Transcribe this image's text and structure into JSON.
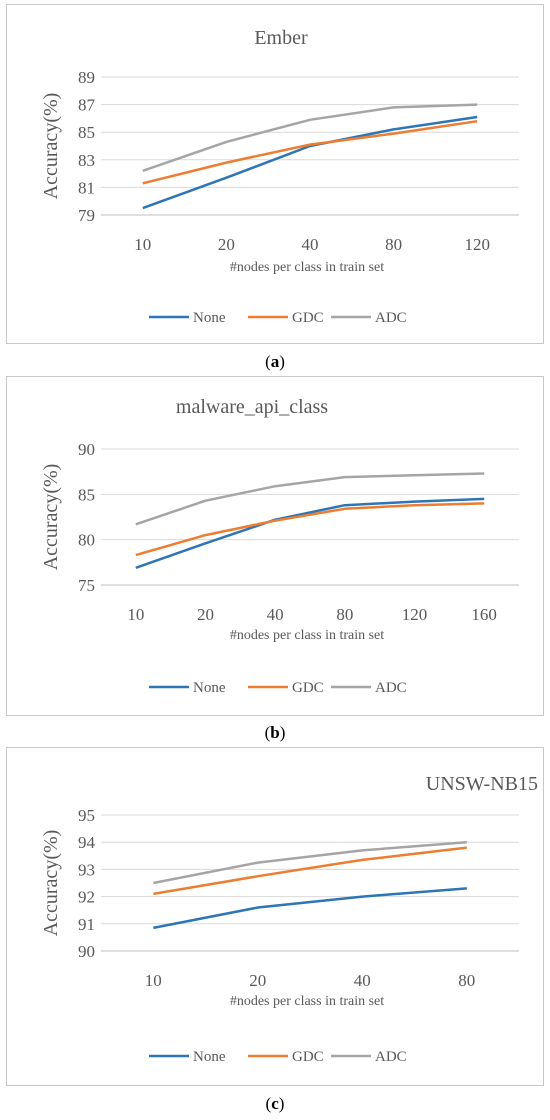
{
  "panels": [
    {
      "caption_open": "(",
      "caption_letter": "a",
      "caption_close": ")"
    },
    {
      "caption_open": "(",
      "caption_letter": "b",
      "caption_close": ")"
    },
    {
      "caption_open": "(",
      "caption_letter": "c",
      "caption_close": ")"
    }
  ],
  "colors": {
    "None": "#2e75b6",
    "GDC": "#ed7d31",
    "ADC": "#a5a5a5"
  },
  "chart_data": [
    {
      "type": "line",
      "title": "Ember",
      "xlabel": "#nodes  per class in train set",
      "ylabel": "Accuracy(%)",
      "categories": [
        "10",
        "20",
        "40",
        "80",
        "120"
      ],
      "ylim": [
        79,
        89
      ],
      "yticks": [
        79,
        81,
        83,
        85,
        87,
        89
      ],
      "grid": true,
      "legend": "bottom",
      "series": [
        {
          "name": "None",
          "values": [
            79.5,
            81.7,
            84.0,
            85.2,
            86.1
          ]
        },
        {
          "name": "GDC",
          "values": [
            81.3,
            82.8,
            84.1,
            84.9,
            85.8
          ]
        },
        {
          "name": "ADC",
          "values": [
            82.2,
            84.3,
            85.9,
            86.8,
            87.0
          ]
        }
      ]
    },
    {
      "type": "line",
      "title": "malware_api_class",
      "xlabel": "#nodes  per class in train set",
      "ylabel": "Accuracy(%)",
      "categories": [
        "10",
        "20",
        "40",
        "80",
        "120",
        "160"
      ],
      "ylim": [
        75,
        90
      ],
      "yticks": [
        75,
        80,
        85,
        90
      ],
      "grid": true,
      "legend": "bottom",
      "series": [
        {
          "name": "None",
          "values": [
            76.9,
            79.6,
            82.2,
            83.8,
            84.2,
            84.5
          ]
        },
        {
          "name": "GDC",
          "values": [
            78.3,
            80.5,
            82.1,
            83.4,
            83.8,
            84.0
          ]
        },
        {
          "name": "ADC",
          "values": [
            81.7,
            84.3,
            85.9,
            86.9,
            87.1,
            87.3
          ]
        }
      ]
    },
    {
      "type": "line",
      "title": "UNSW-NB15",
      "xlabel": "#nodes  per class in train set",
      "ylabel": "Accuracy(%)",
      "categories": [
        "10",
        "20",
        "40",
        "80"
      ],
      "ylim": [
        90,
        95
      ],
      "yticks": [
        90,
        91,
        92,
        93,
        94,
        95
      ],
      "grid": true,
      "legend": "bottom",
      "series": [
        {
          "name": "None",
          "values": [
            90.85,
            91.6,
            92.0,
            92.3
          ]
        },
        {
          "name": "GDC",
          "values": [
            92.1,
            92.75,
            93.35,
            93.8
          ]
        },
        {
          "name": "ADC",
          "values": [
            92.5,
            93.25,
            93.7,
            94.0
          ]
        }
      ]
    }
  ]
}
